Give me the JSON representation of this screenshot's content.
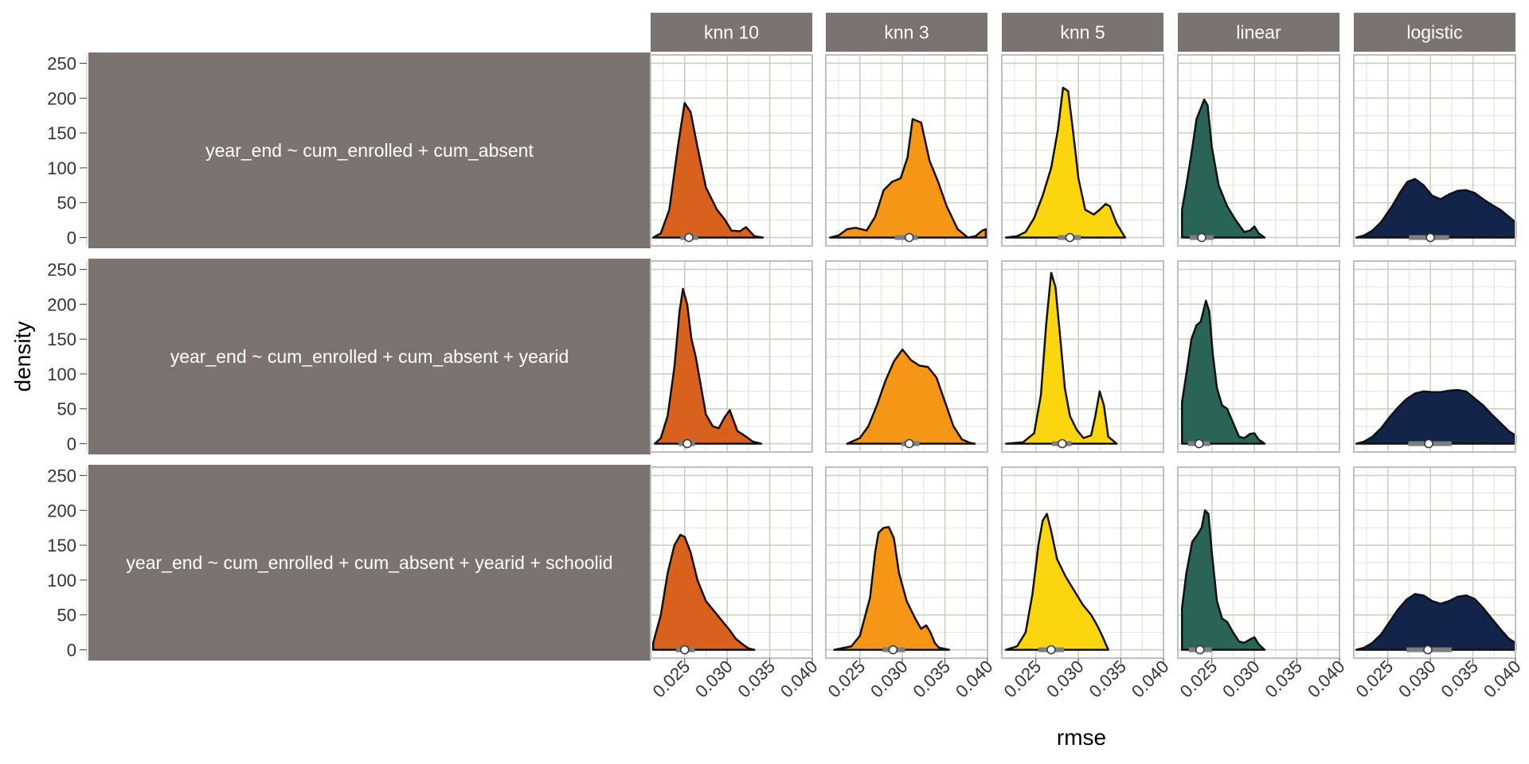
{
  "chart_data": {
    "type": "area",
    "plot_kind": "density ridges faceted by formula (rows) and model (columns)",
    "xlabel": "rmse",
    "ylabel": "density",
    "xlim": [
      0.021,
      0.04
    ],
    "ylim": [
      -12,
      262
    ],
    "x_ticks": [
      0.025,
      0.03,
      0.035,
      0.04
    ],
    "x_tick_labels": [
      "0.025",
      "0.030",
      "0.035",
      "0.040"
    ],
    "y_ticks": [
      0,
      50,
      100,
      150,
      200,
      250
    ],
    "y_tick_labels": [
      "0",
      "50",
      "100",
      "150",
      "200",
      "250"
    ],
    "grid": true,
    "legend": "none",
    "columns": [
      {
        "name": "knn 10",
        "color": "#D9611E"
      },
      {
        "name": "knn 3",
        "color": "#F59616"
      },
      {
        "name": "knn 5",
        "color": "#FBD60E"
      },
      {
        "name": "linear",
        "color": "#2A6456"
      },
      {
        "name": "logistic",
        "color": "#13244A"
      }
    ],
    "rows": [
      {
        "name": "year_end ~ cum_enrolled + cum_absent"
      },
      {
        "name": "year_end ~ cum_enrolled + cum_absent + yearid"
      },
      {
        "name": "year_end ~ cum_enrolled + cum_absent + yearid + schoolid"
      }
    ],
    "panels": [
      [
        {
          "x": [
            0.0213,
            0.0222,
            0.0232,
            0.0242,
            0.025,
            0.0257,
            0.0265,
            0.0275,
            0.0288,
            0.0297,
            0.0305,
            0.0315,
            0.0322,
            0.0332,
            0.0342
          ],
          "y": [
            0,
            6,
            40,
            130,
            193,
            180,
            130,
            72,
            40,
            26,
            10,
            9,
            15,
            2,
            0
          ],
          "median": 0.0255,
          "iqr": [
            0.0245,
            0.0266
          ]
        },
        {
          "x": [
            0.0215,
            0.0225,
            0.0235,
            0.0245,
            0.0258,
            0.0268,
            0.0278,
            0.0288,
            0.0298,
            0.0306,
            0.0312,
            0.0322,
            0.0332,
            0.0342,
            0.0352,
            0.0365,
            0.0377,
            0.0386,
            0.0394,
            0.0398
          ],
          "y": [
            0,
            3,
            12,
            14,
            10,
            30,
            68,
            80,
            85,
            115,
            170,
            165,
            110,
            80,
            45,
            12,
            0,
            2,
            10,
            12
          ],
          "median": 0.0308,
          "iqr": [
            0.0291,
            0.0318
          ]
        },
        {
          "x": [
            0.0215,
            0.0228,
            0.0238,
            0.0248,
            0.0258,
            0.0268,
            0.0276,
            0.0282,
            0.0288,
            0.0294,
            0.03,
            0.0308,
            0.0318,
            0.0325,
            0.0332,
            0.0337,
            0.0345,
            0.0355
          ],
          "y": [
            0,
            2,
            8,
            28,
            60,
            100,
            155,
            215,
            210,
            150,
            85,
            40,
            33,
            40,
            48,
            45,
            20,
            0
          ],
          "median": 0.029,
          "iqr": [
            0.0276,
            0.0303
          ]
        },
        {
          "x": [
            0.0215,
            0.022,
            0.0226,
            0.0232,
            0.0237,
            0.0241,
            0.0245,
            0.025,
            0.0258,
            0.0268,
            0.0278,
            0.0288,
            0.0295,
            0.03,
            0.0305,
            0.0312
          ],
          "y": [
            40,
            75,
            120,
            170,
            185,
            198,
            190,
            130,
            75,
            45,
            25,
            8,
            10,
            16,
            6,
            0
          ],
          "median": 0.0238,
          "iqr": [
            0.0224,
            0.0252
          ]
        },
        {
          "x": [
            0.0213,
            0.0222,
            0.0232,
            0.0242,
            0.0255,
            0.0265,
            0.0273,
            0.0282,
            0.0292,
            0.0302,
            0.0312,
            0.0322,
            0.0332,
            0.0342,
            0.0352,
            0.0362,
            0.0372,
            0.0382,
            0.0392,
            0.04
          ],
          "y": [
            0,
            3,
            10,
            22,
            45,
            66,
            80,
            84,
            75,
            60,
            55,
            62,
            67,
            68,
            64,
            55,
            47,
            40,
            30,
            22
          ],
          "median": 0.03,
          "iqr": [
            0.0275,
            0.0322
          ]
        }
      ],
      [
        {
          "x": [
            0.0215,
            0.0222,
            0.023,
            0.0238,
            0.0244,
            0.0248,
            0.0253,
            0.0258,
            0.0263,
            0.0268,
            0.0275,
            0.0283,
            0.029,
            0.0297,
            0.0303,
            0.0312,
            0.032,
            0.033,
            0.034
          ],
          "y": [
            0,
            8,
            40,
            110,
            190,
            222,
            200,
            150,
            125,
            90,
            42,
            25,
            22,
            38,
            48,
            18,
            12,
            3,
            0
          ],
          "median": 0.0253,
          "iqr": [
            0.0243,
            0.0262
          ]
        },
        {
          "x": [
            0.0235,
            0.025,
            0.026,
            0.027,
            0.028,
            0.029,
            0.03,
            0.031,
            0.032,
            0.033,
            0.034,
            0.035,
            0.036,
            0.037,
            0.038,
            0.0385
          ],
          "y": [
            0,
            8,
            25,
            55,
            90,
            118,
            135,
            120,
            112,
            110,
            95,
            60,
            25,
            6,
            1,
            0
          ],
          "median": 0.0308,
          "iqr": [
            0.0299,
            0.032
          ]
        },
        {
          "x": [
            0.0215,
            0.0235,
            0.0248,
            0.0256,
            0.0262,
            0.0268,
            0.0273,
            0.0278,
            0.0284,
            0.029,
            0.0298,
            0.0306,
            0.0315,
            0.032,
            0.0325,
            0.033,
            0.0335,
            0.0345
          ],
          "y": [
            0,
            2,
            15,
            70,
            170,
            245,
            225,
            160,
            80,
            40,
            20,
            8,
            12,
            40,
            75,
            55,
            10,
            0
          ],
          "median": 0.0281,
          "iqr": [
            0.0269,
            0.0292
          ]
        },
        {
          "x": [
            0.0215,
            0.022,
            0.0226,
            0.0232,
            0.0237,
            0.0243,
            0.0247,
            0.0251,
            0.0256,
            0.0262,
            0.0268,
            0.0275,
            0.0282,
            0.0288,
            0.0295,
            0.03,
            0.0305,
            0.0312
          ],
          "y": [
            60,
            100,
            150,
            170,
            175,
            205,
            190,
            130,
            80,
            55,
            50,
            30,
            10,
            8,
            14,
            15,
            6,
            0
          ],
          "median": 0.0235,
          "iqr": [
            0.0222,
            0.0248
          ]
        },
        {
          "x": [
            0.0213,
            0.0222,
            0.0232,
            0.0242,
            0.0252,
            0.0262,
            0.0272,
            0.0282,
            0.0292,
            0.0302,
            0.0312,
            0.0322,
            0.0332,
            0.0342,
            0.0352,
            0.0362,
            0.0372,
            0.0382,
            0.0392,
            0.04
          ],
          "y": [
            0,
            3,
            10,
            22,
            38,
            52,
            64,
            72,
            75,
            74,
            74,
            76,
            77,
            75,
            65,
            55,
            42,
            30,
            18,
            12
          ],
          "median": 0.0298,
          "iqr": [
            0.0274,
            0.0325
          ]
        }
      ],
      [
        {
          "x": [
            0.0213,
            0.0222,
            0.023,
            0.0238,
            0.0245,
            0.025,
            0.0257,
            0.0265,
            0.0275,
            0.0285,
            0.0295,
            0.0303,
            0.031,
            0.0318,
            0.0325,
            0.0332
          ],
          "y": [
            10,
            50,
            110,
            150,
            165,
            162,
            140,
            100,
            70,
            55,
            40,
            28,
            16,
            8,
            2,
            0
          ],
          "median": 0.025,
          "iqr": [
            0.024,
            0.0262
          ]
        },
        {
          "x": [
            0.022,
            0.024,
            0.025,
            0.0262,
            0.0268,
            0.0272,
            0.0278,
            0.0284,
            0.029,
            0.0296,
            0.0305,
            0.0315,
            0.0322,
            0.0328,
            0.0333,
            0.0338,
            0.0343,
            0.0355
          ],
          "y": [
            0,
            5,
            20,
            75,
            140,
            168,
            175,
            176,
            160,
            110,
            70,
            45,
            30,
            35,
            25,
            10,
            3,
            0
          ],
          "median": 0.0289,
          "iqr": [
            0.0277,
            0.0303
          ]
        },
        {
          "x": [
            0.0215,
            0.0228,
            0.0238,
            0.0246,
            0.0253,
            0.0258,
            0.0263,
            0.0268,
            0.0275,
            0.0285,
            0.0295,
            0.0305,
            0.0315,
            0.0322,
            0.0328,
            0.0335
          ],
          "y": [
            0,
            5,
            25,
            80,
            150,
            185,
            195,
            170,
            130,
            105,
            85,
            65,
            50,
            35,
            20,
            0
          ],
          "median": 0.0268,
          "iqr": [
            0.0253,
            0.0283
          ]
        },
        {
          "x": [
            0.0215,
            0.022,
            0.0227,
            0.0233,
            0.0238,
            0.0242,
            0.0246,
            0.025,
            0.0256,
            0.0262,
            0.0268,
            0.0275,
            0.0282,
            0.0288,
            0.0295,
            0.03,
            0.0305,
            0.0312
          ],
          "y": [
            60,
            110,
            155,
            165,
            175,
            200,
            195,
            140,
            70,
            45,
            40,
            25,
            12,
            10,
            15,
            18,
            8,
            0
          ],
          "median": 0.0236,
          "iqr": [
            0.0223,
            0.025
          ]
        },
        {
          "x": [
            0.0213,
            0.0222,
            0.0232,
            0.0242,
            0.0252,
            0.0262,
            0.0272,
            0.0282,
            0.0292,
            0.0302,
            0.0312,
            0.0322,
            0.0332,
            0.0342,
            0.0352,
            0.0362,
            0.0372,
            0.0382,
            0.0392,
            0.04
          ],
          "y": [
            0,
            3,
            10,
            22,
            40,
            58,
            72,
            80,
            78,
            70,
            66,
            70,
            76,
            78,
            73,
            60,
            45,
            30,
            16,
            10
          ],
          "median": 0.0297,
          "iqr": [
            0.0272,
            0.0325
          ]
        }
      ]
    ]
  }
}
